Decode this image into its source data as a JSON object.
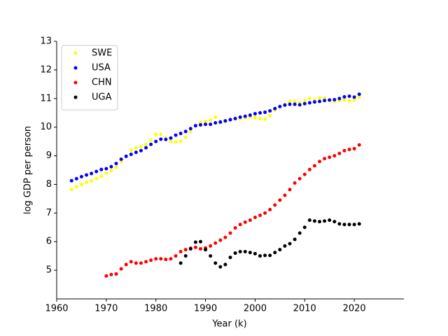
{
  "chart_data": {
    "type": "scatter",
    "x_label": "Year (k)",
    "y_label": "log GDP per person",
    "xlim": [
      1960,
      2030
    ],
    "ylim": [
      4,
      13
    ],
    "xticks": [
      1960,
      1970,
      1980,
      1990,
      2000,
      2010,
      2020
    ],
    "yticks": [
      5,
      6,
      7,
      8,
      9,
      10,
      11,
      12,
      13
    ],
    "legend": "upper left",
    "series": [
      {
        "name": "SWE",
        "color": "#ffff00",
        "x": [
          1963,
          1964,
          1965,
          1966,
          1967,
          1968,
          1969,
          1970,
          1971,
          1972,
          1973,
          1974,
          1975,
          1976,
          1977,
          1978,
          1979,
          1980,
          1981,
          1982,
          1983,
          1984,
          1985,
          1986,
          1987,
          1988,
          1989,
          1990,
          1991,
          1992,
          1993,
          1994,
          1995,
          1996,
          1997,
          1998,
          1999,
          2000,
          2001,
          2002,
          2003,
          2004,
          2005,
          2006,
          2007,
          2008,
          2009,
          2010,
          2011,
          2012,
          2013,
          2014,
          2015,
          2016,
          2017,
          2018,
          2019,
          2020,
          2021
        ],
        "values": [
          7.82,
          7.92,
          8.0,
          8.07,
          8.13,
          8.2,
          8.28,
          8.4,
          8.48,
          8.6,
          8.8,
          9.0,
          9.2,
          9.28,
          9.32,
          9.4,
          9.55,
          9.75,
          9.75,
          9.62,
          9.5,
          9.48,
          9.5,
          9.65,
          9.85,
          10.05,
          10.15,
          10.2,
          10.25,
          10.35,
          10.15,
          10.2,
          10.28,
          10.3,
          10.3,
          10.33,
          10.35,
          10.33,
          10.3,
          10.28,
          10.4,
          10.6,
          10.72,
          10.8,
          10.9,
          10.9,
          10.85,
          10.92,
          11.0,
          10.95,
          11.02,
          11.02,
          10.92,
          10.9,
          10.93,
          10.95,
          10.92,
          10.95,
          11.05
        ]
      },
      {
        "name": "USA",
        "color": "#0000ff",
        "x": [
          1963,
          1964,
          1965,
          1966,
          1967,
          1968,
          1969,
          1970,
          1971,
          1972,
          1973,
          1974,
          1975,
          1976,
          1977,
          1978,
          1979,
          1980,
          1981,
          1982,
          1983,
          1984,
          1985,
          1986,
          1987,
          1988,
          1989,
          1990,
          1991,
          1992,
          1993,
          1994,
          1995,
          1996,
          1997,
          1998,
          1999,
          2000,
          2001,
          2002,
          2003,
          2004,
          2005,
          2006,
          2007,
          2008,
          2009,
          2010,
          2011,
          2012,
          2013,
          2014,
          2015,
          2016,
          2017,
          2018,
          2019,
          2020,
          2021
        ],
        "values": [
          8.13,
          8.2,
          8.27,
          8.33,
          8.38,
          8.45,
          8.52,
          8.55,
          8.62,
          8.73,
          8.88,
          8.98,
          9.05,
          9.12,
          9.18,
          9.28,
          9.4,
          9.5,
          9.58,
          9.57,
          9.62,
          9.72,
          9.78,
          9.85,
          9.95,
          10.05,
          10.08,
          10.1,
          10.1,
          10.15,
          10.18,
          10.22,
          10.26,
          10.3,
          10.35,
          10.38,
          10.42,
          10.47,
          10.5,
          10.52,
          10.57,
          10.65,
          10.72,
          10.77,
          10.8,
          10.8,
          10.78,
          10.82,
          10.85,
          10.88,
          10.9,
          10.93,
          10.95,
          10.96,
          11.0,
          11.06,
          11.08,
          11.05,
          11.15
        ]
      },
      {
        "name": "CHN",
        "color": "#ff0000",
        "x": [
          1970,
          1971,
          1972,
          1973,
          1974,
          1975,
          1976,
          1977,
          1978,
          1979,
          1980,
          1981,
          1982,
          1983,
          1984,
          1985,
          1986,
          1987,
          1988,
          1989,
          1990,
          1991,
          1992,
          1993,
          1994,
          1995,
          1996,
          1997,
          1998,
          1999,
          2000,
          2001,
          2002,
          2003,
          2004,
          2005,
          2006,
          2007,
          2008,
          2009,
          2010,
          2011,
          2012,
          2013,
          2014,
          2015,
          2016,
          2017,
          2018,
          2019,
          2020,
          2021
        ],
        "values": [
          4.8,
          4.85,
          4.87,
          5.05,
          5.2,
          5.3,
          5.25,
          5.25,
          5.3,
          5.35,
          5.4,
          5.4,
          5.38,
          5.4,
          5.5,
          5.65,
          5.72,
          5.77,
          5.8,
          5.75,
          5.78,
          5.85,
          5.95,
          6.05,
          6.15,
          6.3,
          6.48,
          6.6,
          6.68,
          6.75,
          6.85,
          6.92,
          7.0,
          7.12,
          7.28,
          7.45,
          7.62,
          7.82,
          8.05,
          8.2,
          8.35,
          8.52,
          8.65,
          8.8,
          8.9,
          8.95,
          9.0,
          9.08,
          9.18,
          9.22,
          9.25,
          9.38
        ]
      },
      {
        "name": "UGA",
        "color": "#000000",
        "x": [
          1985,
          1986,
          1987,
          1988,
          1989,
          1990,
          1991,
          1992,
          1993,
          1994,
          1995,
          1996,
          1997,
          1998,
          1999,
          2000,
          2001,
          2002,
          2003,
          2004,
          2005,
          2006,
          2007,
          2008,
          2009,
          2010,
          2011,
          2012,
          2013,
          2014,
          2015,
          2016,
          2017,
          2018,
          2019,
          2020,
          2021
        ],
        "values": [
          5.25,
          5.5,
          5.75,
          5.98,
          6.0,
          5.72,
          5.5,
          5.25,
          5.12,
          5.2,
          5.45,
          5.6,
          5.65,
          5.65,
          5.62,
          5.58,
          5.5,
          5.52,
          5.52,
          5.62,
          5.72,
          5.85,
          5.93,
          6.08,
          6.3,
          6.5,
          6.75,
          6.72,
          6.7,
          6.72,
          6.75,
          6.7,
          6.62,
          6.6,
          6.6,
          6.6,
          6.62
        ]
      }
    ]
  }
}
